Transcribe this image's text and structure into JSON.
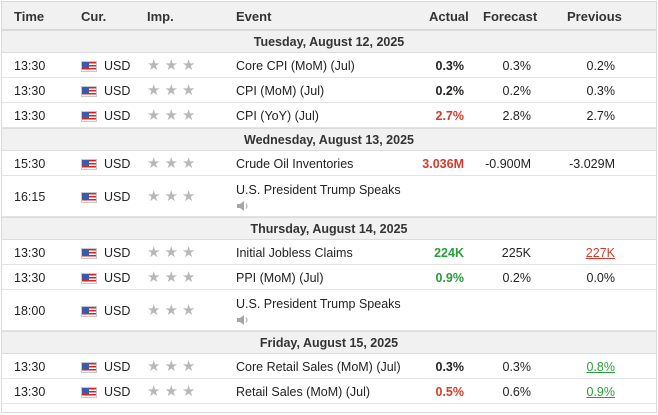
{
  "columns": {
    "time": "Time",
    "currency": "Cur.",
    "importance": "Imp.",
    "event": "Event",
    "actual": "Actual",
    "forecast": "Forecast",
    "previous": "Previous"
  },
  "colors": {
    "positive": "#2a9d3b",
    "negative": "#d83a2a",
    "star": "#b8b8b8"
  },
  "days": [
    {
      "date": "Tuesday, August 12, 2025",
      "events": [
        {
          "time": "13:30",
          "currency": "USD",
          "event": "Core CPI (MoM) (Jul)",
          "actual": "0.3%",
          "actual_tone": "neutral",
          "forecast": "0.3%",
          "previous": "0.2%",
          "previous_tone": "neutral",
          "importance_stars": 3,
          "speech": false
        },
        {
          "time": "13:30",
          "currency": "USD",
          "event": "CPI (MoM) (Jul)",
          "actual": "0.2%",
          "actual_tone": "neutral",
          "forecast": "0.2%",
          "previous": "0.3%",
          "previous_tone": "neutral",
          "importance_stars": 3,
          "speech": false
        },
        {
          "time": "13:30",
          "currency": "USD",
          "event": "CPI (YoY) (Jul)",
          "actual": "2.7%",
          "actual_tone": "negative",
          "forecast": "2.8%",
          "previous": "2.7%",
          "previous_tone": "neutral",
          "importance_stars": 3,
          "speech": false
        }
      ]
    },
    {
      "date": "Wednesday, August 13, 2025",
      "events": [
        {
          "time": "15:30",
          "currency": "USD",
          "event": "Crude Oil Inventories",
          "actual": "3.036M",
          "actual_tone": "negative",
          "forecast": "-0.900M",
          "previous": "-3.029M",
          "previous_tone": "neutral",
          "importance_stars": 3,
          "speech": false
        },
        {
          "time": "16:15",
          "currency": "USD",
          "event": "U.S. President Trump Speaks",
          "actual": "",
          "actual_tone": "neutral",
          "forecast": "",
          "previous": "",
          "previous_tone": "neutral",
          "importance_stars": 3,
          "speech": true
        }
      ]
    },
    {
      "date": "Thursday, August 14, 2025",
      "events": [
        {
          "time": "13:30",
          "currency": "USD",
          "event": "Initial Jobless Claims",
          "actual": "224K",
          "actual_tone": "positive",
          "forecast": "225K",
          "previous": "227K",
          "previous_tone": "negative",
          "importance_stars": 3,
          "speech": false
        },
        {
          "time": "13:30",
          "currency": "USD",
          "event": "PPI (MoM) (Jul)",
          "actual": "0.9%",
          "actual_tone": "positive",
          "forecast": "0.2%",
          "previous": "0.0%",
          "previous_tone": "neutral",
          "importance_stars": 3,
          "speech": false
        },
        {
          "time": "18:00",
          "currency": "USD",
          "event": "U.S. President Trump Speaks",
          "actual": "",
          "actual_tone": "neutral",
          "forecast": "",
          "previous": "",
          "previous_tone": "neutral",
          "importance_stars": 3,
          "speech": true
        }
      ]
    },
    {
      "date": "Friday, August 15, 2025",
      "events": [
        {
          "time": "13:30",
          "currency": "USD",
          "event": "Core Retail Sales (MoM) (Jul)",
          "actual": "0.3%",
          "actual_tone": "neutral",
          "forecast": "0.3%",
          "previous": "0.8%",
          "previous_tone": "positive",
          "importance_stars": 3,
          "speech": false
        },
        {
          "time": "13:30",
          "currency": "USD",
          "event": "Retail Sales (MoM) (Jul)",
          "actual": "0.5%",
          "actual_tone": "negative",
          "forecast": "0.6%",
          "previous": "0.9%",
          "previous_tone": "positive",
          "importance_stars": 3,
          "speech": false
        }
      ]
    }
  ]
}
